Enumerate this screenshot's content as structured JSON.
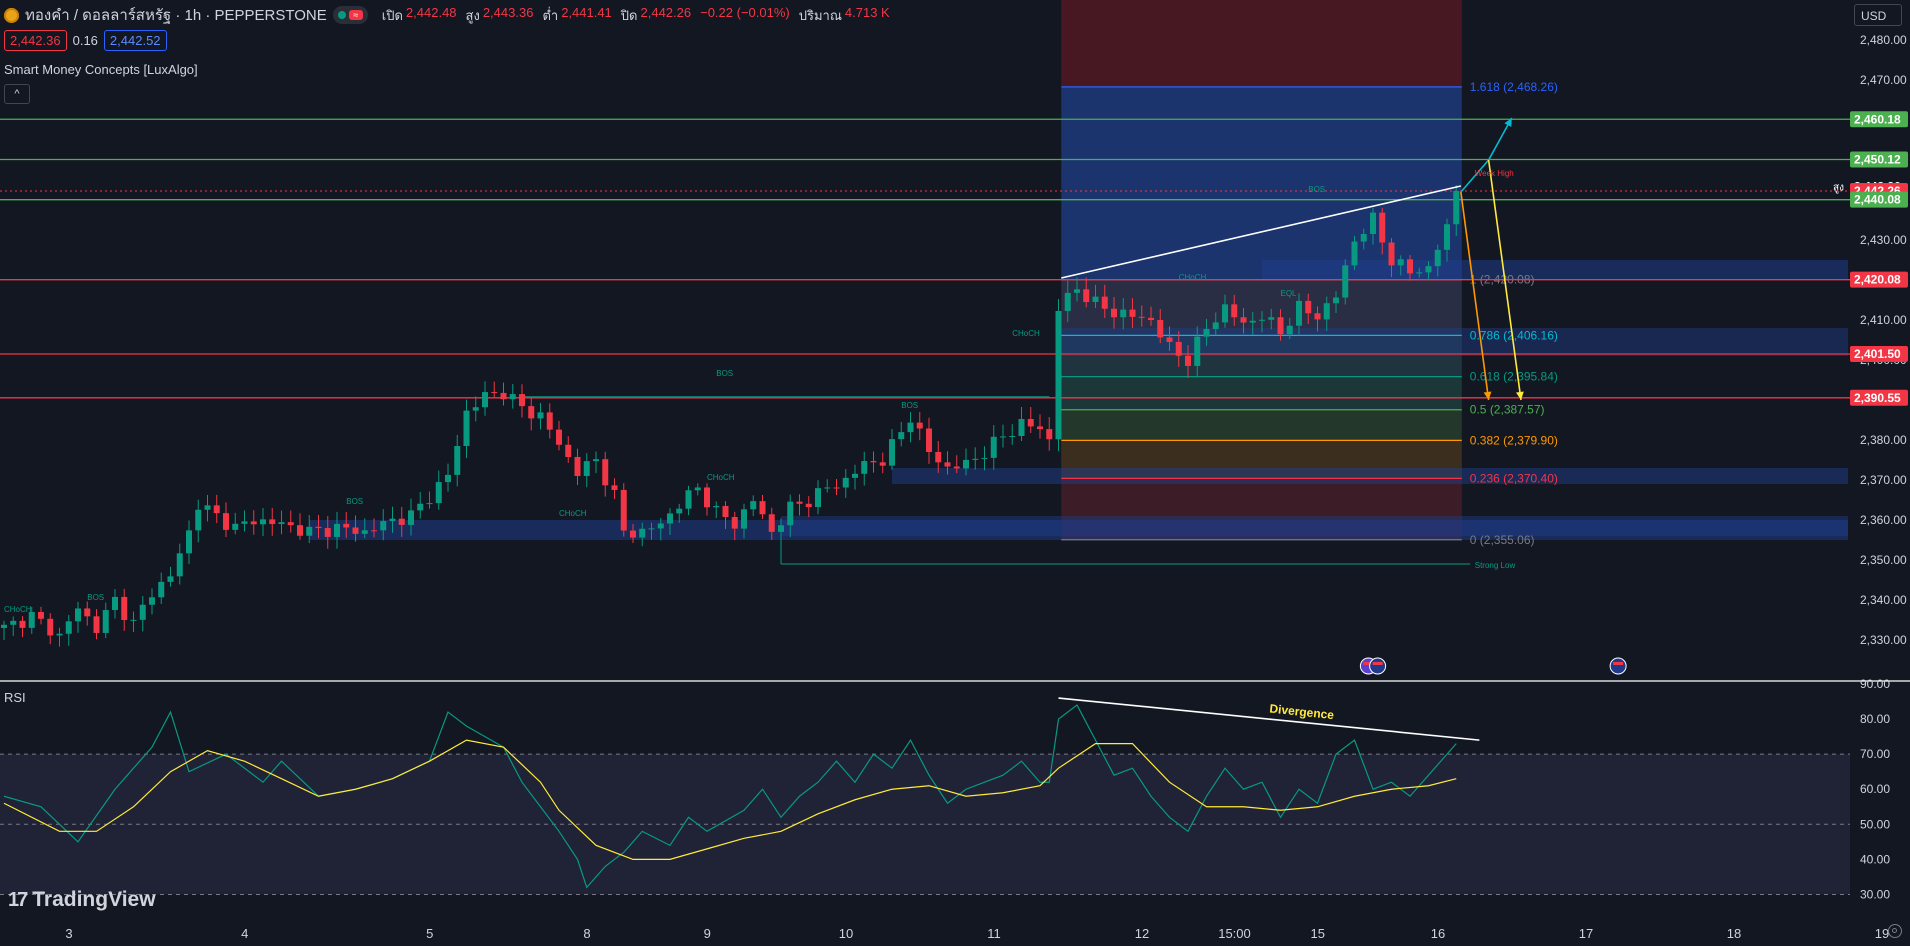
{
  "header": {
    "symbol": "ทองคำ / ดอลลาร์สหรัฐ · 1h · PEPPERSTONE",
    "ohlc": [
      {
        "label": "เปิด",
        "value": "2,442.48"
      },
      {
        "label": "สูง",
        "value": "2,443.36"
      },
      {
        "label": "ต่ำ",
        "value": "2,441.41"
      },
      {
        "label": "ปิด",
        "value": "2,442.26"
      }
    ],
    "change": "−0.22 (−0.01%)",
    "volume_label": "ปริมาณ",
    "volume": "4.713 K",
    "sell_price": "2,442.36",
    "spread": "0.16",
    "buy_price": "2,442.52",
    "wave_icon": "≈"
  },
  "indicator_name": "Smart Money Concepts [LuxAlgo]",
  "collapse_icon": "^",
  "currency": "USD",
  "rsi_label": "RSI",
  "logo_text": "TradingView",
  "logo_mark": "17",
  "chart_data": [
    {
      "type": "candlestick",
      "title": "ทองคำ / ดอลลาร์สหรัฐ · 1h · PEPPERSTONE",
      "ylim": [
        2320,
        2490
      ],
      "y_ticks": [
        "2,480.00",
        "2,470.00",
        "2,460.00",
        "2,450.00",
        "2,440.00",
        "2,430.00",
        "2,420.00",
        "2,410.00",
        "2,400.00",
        "2,390.00",
        "2,380.00",
        "2,370.00",
        "2,360.00",
        "2,350.00",
        "2,340.00",
        "2,330.00"
      ],
      "y_tick_values": [
        2480,
        2470,
        2460,
        2450,
        2440,
        2430,
        2420,
        2410,
        2400,
        2390,
        2380,
        2370,
        2360,
        2350,
        2340,
        2330
      ],
      "x_ticks": [
        "3",
        "4",
        "5",
        "8",
        "9",
        "10",
        "11",
        "12",
        "15:00",
        "15",
        "16",
        "17",
        "18",
        "19"
      ],
      "x_tick_index": [
        0,
        19,
        39,
        56,
        69,
        84,
        100,
        116,
        126,
        135,
        148,
        164,
        180,
        196
      ],
      "last_bar_index": 157,
      "close_path": [
        [
          0,
          2333
        ],
        [
          3,
          2336
        ],
        [
          6,
          2331
        ],
        [
          8,
          2338
        ],
        [
          10,
          2333
        ],
        [
          12,
          2340
        ],
        [
          14,
          2334
        ],
        [
          16,
          2342
        ],
        [
          18,
          2346
        ],
        [
          20,
          2357
        ],
        [
          21,
          2364
        ],
        [
          23,
          2361
        ],
        [
          25,
          2358
        ],
        [
          27,
          2360
        ],
        [
          30,
          2359
        ],
        [
          33,
          2357
        ],
        [
          36,
          2358
        ],
        [
          39,
          2357
        ],
        [
          42,
          2360
        ],
        [
          44,
          2361
        ],
        [
          46,
          2366
        ],
        [
          48,
          2371
        ],
        [
          50,
          2387
        ],
        [
          52,
          2391
        ],
        [
          54,
          2392
        ],
        [
          56,
          2388
        ],
        [
          58,
          2386
        ],
        [
          60,
          2379
        ],
        [
          62,
          2372
        ],
        [
          64,
          2375
        ],
        [
          66,
          2366
        ],
        [
          67,
          2357
        ],
        [
          69,
          2357
        ],
        [
          71,
          2359
        ],
        [
          73,
          2364
        ],
        [
          75,
          2368
        ],
        [
          77,
          2362
        ],
        [
          79,
          2359
        ],
        [
          81,
          2365
        ],
        [
          83,
          2357
        ],
        [
          85,
          2363
        ],
        [
          87,
          2365
        ],
        [
          89,
          2368
        ],
        [
          91,
          2370
        ],
        [
          93,
          2374
        ],
        [
          95,
          2375
        ],
        [
          97,
          2382
        ],
        [
          98,
          2386
        ],
        [
          100,
          2377
        ],
        [
          102,
          2373
        ],
        [
          104,
          2374
        ],
        [
          106,
          2377
        ],
        [
          108,
          2381
        ],
        [
          110,
          2384
        ],
        [
          112,
          2383
        ],
        [
          113,
          2380
        ],
        [
          114,
          2413
        ],
        [
          116,
          2418
        ],
        [
          118,
          2414
        ],
        [
          120,
          2412
        ],
        [
          122,
          2411
        ],
        [
          124,
          2410
        ],
        [
          126,
          2403
        ],
        [
          128,
          2400
        ],
        [
          130,
          2408
        ],
        [
          132,
          2413
        ],
        [
          134,
          2409
        ],
        [
          136,
          2411
        ],
        [
          138,
          2407
        ],
        [
          140,
          2413
        ],
        [
          142,
          2411
        ],
        [
          144,
          2416
        ],
        [
          146,
          2430
        ],
        [
          148,
          2435
        ],
        [
          150,
          2425
        ],
        [
          152,
          2422
        ],
        [
          154,
          2423
        ],
        [
          156,
          2433
        ],
        [
          157,
          2442.26
        ]
      ],
      "last_price": 2442.26,
      "price_labels": [
        {
          "value": 2460.18,
          "text": "2,460.18",
          "color": "#4caf50"
        },
        {
          "value": 2450.12,
          "text": "2,450.12",
          "color": "#4caf50"
        },
        {
          "value": 2443.36,
          "text": "2,443.36",
          "color": "#131722",
          "prefix": "สูง"
        },
        {
          "value": 2442.26,
          "text": "2,442.26",
          "color": "#f23645"
        },
        {
          "value": 2440.08,
          "text": "2,440.08",
          "color": "#4caf50"
        },
        {
          "value": 2420.08,
          "text": "2,420.08",
          "color": "#f23645"
        },
        {
          "value": 2401.5,
          "text": "2,401.50",
          "color": "#f23645"
        },
        {
          "value": 2390.55,
          "text": "2,390.55",
          "color": "#f23645"
        }
      ],
      "green_levels": [
        2460.18,
        2450.12,
        2440.08
      ],
      "red_levels": [
        2420.08,
        2401.5,
        2390.55
      ],
      "fib_levels": [
        {
          "value": 2468.26,
          "label": "1.618 (2,468.26)",
          "color": "#2962ff"
        },
        {
          "value": 2420.08,
          "label": "1 (2,420.08)",
          "color": "#787b86"
        },
        {
          "value": 2406.16,
          "label": "0.786 (2,406.16)",
          "color": "#00bcd4"
        },
        {
          "value": 2395.84,
          "label": "0.618 (2,395.84)",
          "color": "#089981"
        },
        {
          "value": 2387.57,
          "label": "0.5 (2,387.57)",
          "color": "#4caf50"
        },
        {
          "value": 2379.9,
          "label": "0.382 (2,379.90)",
          "color": "#ff9800"
        },
        {
          "value": 2370.4,
          "label": "0.236 (2,370.40)",
          "color": "#f23645"
        },
        {
          "value": 2355.06,
          "label": "0 (2,355.06)",
          "color": "#787b86"
        }
      ],
      "annotations": [
        {
          "text": "BOS",
          "x": 77,
          "y": 2396
        },
        {
          "text": "BOS",
          "x": 37,
          "y": 2364
        },
        {
          "text": "BOS",
          "x": 9,
          "y": 2340
        },
        {
          "text": "BOS",
          "x": 97,
          "y": 2388
        },
        {
          "text": "BOS",
          "x": 141,
          "y": 2442
        },
        {
          "text": "CHoCH",
          "x": 76,
          "y": 2370
        },
        {
          "text": "CHoCH",
          "x": 60,
          "y": 2361
        },
        {
          "text": "CHoCH",
          "x": 109,
          "y": 2406
        },
        {
          "text": "CHoCH",
          "x": 127,
          "y": 2420
        },
        {
          "text": "CHoCH",
          "x": 0,
          "y": 2337
        },
        {
          "text": "Week High",
          "x": 159,
          "y": 2446
        },
        {
          "text": "Strong Low",
          "x": 159,
          "y": 2348
        },
        {
          "text": "EQL",
          "x": 138,
          "y": 2416
        }
      ]
    },
    {
      "type": "line",
      "title": "RSI",
      "ylim": [
        25,
        90
      ],
      "y_ticks": [
        "90.00",
        "80.00",
        "70.00",
        "60.00",
        "50.00",
        "40.00",
        "30.00"
      ],
      "y_tick_values": [
        90,
        80,
        70,
        60,
        50,
        40,
        30
      ],
      "bands": [
        70,
        50,
        30
      ],
      "series": [
        {
          "values": [
            [
              0,
              58
            ],
            [
              4,
              55
            ],
            [
              8,
              45
            ],
            [
              12,
              60
            ],
            [
              16,
              72
            ],
            [
              18,
              82
            ],
            [
              20,
              65
            ],
            [
              24,
              70
            ],
            [
              28,
              62
            ],
            [
              30,
              68
            ],
            [
              34,
              58
            ],
            [
              38,
              60
            ],
            [
              42,
              63
            ],
            [
              46,
              68
            ],
            [
              48,
              82
            ],
            [
              50,
              78
            ],
            [
              54,
              72
            ],
            [
              56,
              62
            ],
            [
              58,
              55
            ],
            [
              60,
              48
            ],
            [
              62,
              40
            ],
            [
              63,
              32
            ],
            [
              65,
              38
            ],
            [
              67,
              42
            ],
            [
              69,
              48
            ],
            [
              72,
              44
            ],
            [
              74,
              52
            ],
            [
              76,
              48
            ],
            [
              80,
              54
            ],
            [
              82,
              60
            ],
            [
              84,
              52
            ],
            [
              86,
              58
            ],
            [
              88,
              62
            ],
            [
              90,
              68
            ],
            [
              92,
              62
            ],
            [
              94,
              70
            ],
            [
              96,
              66
            ],
            [
              98,
              74
            ],
            [
              100,
              64
            ],
            [
              102,
              56
            ],
            [
              104,
              60
            ],
            [
              106,
              62
            ],
            [
              108,
              64
            ],
            [
              110,
              68
            ],
            [
              112,
              62
            ],
            [
              113,
              62
            ],
            [
              114,
              80
            ],
            [
              116,
              84
            ],
            [
              118,
              74
            ],
            [
              120,
              64
            ],
            [
              122,
              66
            ],
            [
              124,
              58
            ],
            [
              126,
              52
            ],
            [
              128,
              48
            ],
            [
              130,
              58
            ],
            [
              132,
              66
            ],
            [
              134,
              60
            ],
            [
              136,
              62
            ],
            [
              138,
              52
            ],
            [
              140,
              60
            ],
            [
              142,
              56
            ],
            [
              144,
              70
            ],
            [
              146,
              74
            ],
            [
              148,
              60
            ],
            [
              150,
              62
            ],
            [
              152,
              58
            ],
            [
              154,
              64
            ],
            [
              156,
              70
            ],
            [
              157,
              73
            ]
          ]
        },
        {
          "values": [
            [
              0,
              56
            ],
            [
              6,
              48
            ],
            [
              10,
              48
            ],
            [
              14,
              55
            ],
            [
              18,
              65
            ],
            [
              22,
              71
            ],
            [
              26,
              68
            ],
            [
              30,
              63
            ],
            [
              34,
              58
            ],
            [
              38,
              60
            ],
            [
              42,
              63
            ],
            [
              46,
              68
            ],
            [
              50,
              74
            ],
            [
              54,
              72
            ],
            [
              58,
              62
            ],
            [
              60,
              54
            ],
            [
              64,
              44
            ],
            [
              68,
              40
            ],
            [
              72,
              40
            ],
            [
              76,
              43
            ],
            [
              80,
              46
            ],
            [
              84,
              48
            ],
            [
              88,
              53
            ],
            [
              92,
              57
            ],
            [
              96,
              60
            ],
            [
              100,
              61
            ],
            [
              104,
              58
            ],
            [
              108,
              59
            ],
            [
              112,
              61
            ],
            [
              114,
              66
            ],
            [
              118,
              73
            ],
            [
              122,
              73
            ],
            [
              126,
              62
            ],
            [
              130,
              55
            ],
            [
              134,
              55
            ],
            [
              138,
              54
            ],
            [
              142,
              55
            ],
            [
              146,
              58
            ],
            [
              150,
              60
            ],
            [
              154,
              61
            ],
            [
              157,
              63
            ]
          ]
        }
      ],
      "annotations": [
        {
          "text": "Divergence",
          "x": 140,
          "y": 81
        }
      ]
    }
  ]
}
